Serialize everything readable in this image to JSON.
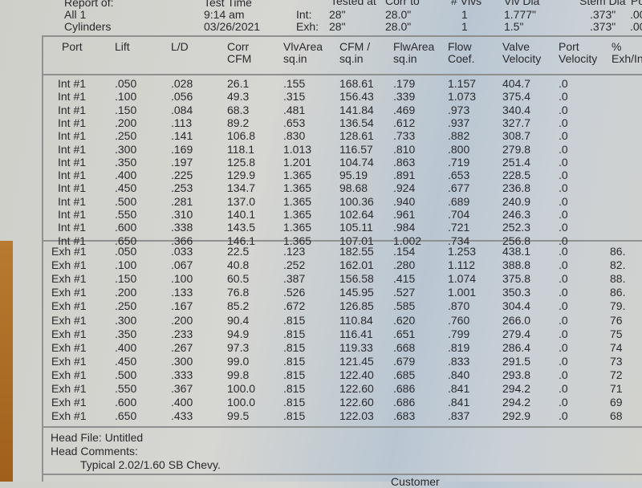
{
  "report_header": {
    "labels": {
      "report_of": "Report of:",
      "test_time": "Test Time",
      "tested_at": "Tested at",
      "corr_to": "Corr to",
      "num_valves": "# Vlvs",
      "valve_dia": "Vlv Dia",
      "stem_dia": "Stem Dia",
      "port": "Po"
    },
    "report_line1": "All 1",
    "report_line2": "Cylinders",
    "time": "9:14 am",
    "date": "03/26/2021",
    "int_label": "Int:",
    "exh_label": "Exh:",
    "int": {
      "tested_at": "28\"",
      "corr_to": "28.0\"",
      "num_valves": "1",
      "valve_dia": "1.777\"",
      "stem_dia": ".373\"",
      "port": ".00"
    },
    "exh": {
      "tested_at": "28\"",
      "corr_to": "28.0\"",
      "num_valves": "1",
      "valve_dia": "1.5\"",
      "stem_dia": ".373\"",
      "port": ".00"
    }
  },
  "table": {
    "headers": [
      [
        "Port",
        ""
      ],
      [
        "Lift",
        ""
      ],
      [
        "L/D",
        ""
      ],
      [
        "Corr",
        "CFM"
      ],
      [
        "VlvArea",
        "sq.in"
      ],
      [
        "CFM /",
        "sq.in"
      ],
      [
        "FlwArea",
        "sq.in"
      ],
      [
        "Flow",
        "Coef."
      ],
      [
        "Valve",
        "Velocity"
      ],
      [
        "Port",
        "Velocity"
      ],
      [
        "%",
        "Exh/In"
      ]
    ],
    "intake": [
      [
        "Int #1",
        ".050",
        ".028",
        "26.1",
        ".155",
        "168.61",
        ".179",
        "1.157",
        "404.7",
        ".0",
        ""
      ],
      [
        "Int #1",
        ".100",
        ".056",
        "49.3",
        ".315",
        "156.43",
        ".339",
        "1.073",
        "375.4",
        ".0",
        ""
      ],
      [
        "Int #1",
        ".150",
        ".084",
        "68.3",
        ".481",
        "141.84",
        ".469",
        ".973",
        "340.4",
        ".0",
        ""
      ],
      [
        "Int #1",
        ".200",
        ".113",
        "89.2",
        ".653",
        "136.54",
        ".612",
        ".937",
        "327.7",
        ".0",
        ""
      ],
      [
        "Int #1",
        ".250",
        ".141",
        "106.8",
        ".830",
        "128.61",
        ".733",
        ".882",
        "308.7",
        ".0",
        ""
      ],
      [
        "Int #1",
        ".300",
        ".169",
        "118.1",
        "1.013",
        "116.57",
        ".810",
        ".800",
        "279.8",
        ".0",
        ""
      ],
      [
        "Int #1",
        ".350",
        ".197",
        "125.8",
        "1.201",
        "104.74",
        ".863",
        ".719",
        "251.4",
        ".0",
        ""
      ],
      [
        "Int #1",
        ".400",
        ".225",
        "129.9",
        "1.365",
        "95.19",
        ".891",
        ".653",
        "228.5",
        ".0",
        ""
      ],
      [
        "Int #1",
        ".450",
        ".253",
        "134.7",
        "1.365",
        "98.68",
        ".924",
        ".677",
        "236.8",
        ".0",
        ""
      ],
      [
        "Int #1",
        ".500",
        ".281",
        "137.0",
        "1.365",
        "100.36",
        ".940",
        ".689",
        "240.9",
        ".0",
        ""
      ],
      [
        "Int #1",
        ".550",
        ".310",
        "140.1",
        "1.365",
        "102.64",
        ".961",
        ".704",
        "246.3",
        ".0",
        ""
      ],
      [
        "Int #1",
        ".600",
        ".338",
        "143.5",
        "1.365",
        "105.11",
        ".984",
        ".721",
        "252.3",
        ".0",
        ""
      ],
      [
        "Int #1",
        ".650",
        ".366",
        "146.1",
        "1.365",
        "107.01",
        "1.002",
        ".734",
        "256.8",
        ".0",
        ""
      ]
    ],
    "exhaust": [
      [
        "Exh #1",
        ".050",
        ".033",
        "22.5",
        ".123",
        "182.55",
        ".154",
        "1.253",
        "438.1",
        ".0",
        "86."
      ],
      [
        "Exh #1",
        ".100",
        ".067",
        "40.8",
        ".252",
        "162.01",
        ".280",
        "1.112",
        "388.8",
        ".0",
        "82."
      ],
      [
        "Exh #1",
        ".150",
        ".100",
        "60.5",
        ".387",
        "156.58",
        ".415",
        "1.074",
        "375.8",
        ".0",
        "88."
      ],
      [
        "Exh #1",
        ".200",
        ".133",
        "76.8",
        ".526",
        "145.95",
        ".527",
        "1.001",
        "350.3",
        ".0",
        "86."
      ],
      [
        "Exh #1",
        ".250",
        ".167",
        "85.2",
        ".672",
        "126.85",
        ".585",
        ".870",
        "304.4",
        ".0",
        "79."
      ],
      [
        "Exh #1",
        ".300",
        ".200",
        "90.4",
        ".815",
        "110.84",
        ".620",
        ".760",
        "266.0",
        ".0",
        "76"
      ],
      [
        "Exh #1",
        ".350",
        ".233",
        "94.9",
        ".815",
        "116.41",
        ".651",
        ".799",
        "279.4",
        ".0",
        "75"
      ],
      [
        "Exh #1",
        ".400",
        ".267",
        "97.3",
        ".815",
        "119.33",
        ".668",
        ".819",
        "286.4",
        ".0",
        "74"
      ],
      [
        "Exh #1",
        ".450",
        ".300",
        "99.0",
        ".815",
        "121.45",
        ".679",
        ".833",
        "291.5",
        ".0",
        "73"
      ],
      [
        "Exh #1",
        ".500",
        ".333",
        "99.8",
        ".815",
        "122.40",
        ".685",
        ".840",
        "293.8",
        ".0",
        "72"
      ],
      [
        "Exh #1",
        ".550",
        ".367",
        "100.0",
        ".815",
        "122.60",
        ".686",
        ".841",
        "294.2",
        ".0",
        "71"
      ],
      [
        "Exh #1",
        ".600",
        ".400",
        "100.0",
        ".815",
        "122.60",
        ".686",
        ".841",
        "294.2",
        ".0",
        "69"
      ],
      [
        "Exh #1",
        ".650",
        ".433",
        "99.5",
        ".815",
        "122.03",
        ".683",
        ".837",
        "292.9",
        ".0",
        "68"
      ]
    ]
  },
  "footer": {
    "head_file": "Head File: Untitled",
    "head_comments_label": "Head Comments:",
    "comment": "Typical 2.02/1.60 SB Chevy.",
    "customer_label": "Customer"
  }
}
